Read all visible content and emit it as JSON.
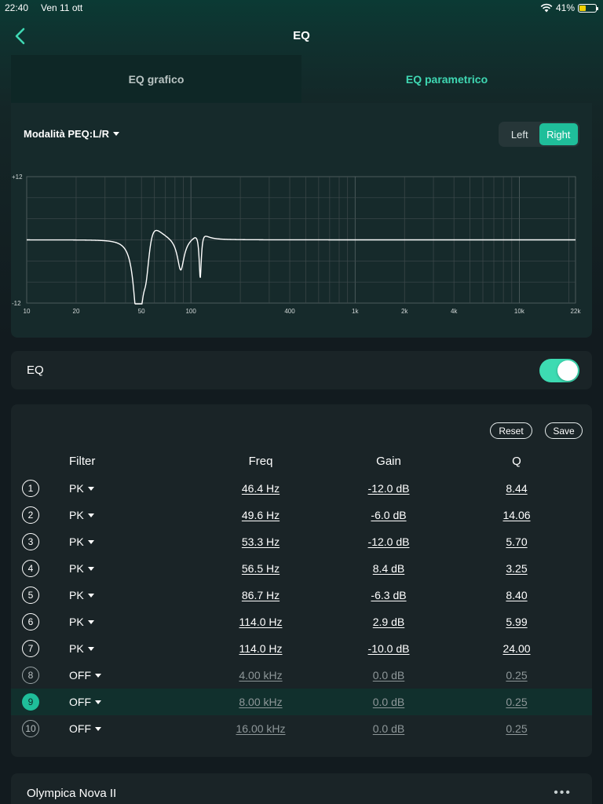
{
  "status_bar": {
    "time": "22:40",
    "date": "Ven 11 ott",
    "battery": "41%",
    "battery_level": 0.41
  },
  "nav": {
    "title": "EQ"
  },
  "tabs": [
    {
      "label": "EQ grafico",
      "active": false
    },
    {
      "label": "EQ parametrico",
      "active": true
    }
  ],
  "graph": {
    "mode_label": "Modalità PEQ:L/R",
    "channel_options": [
      "Left",
      "Right"
    ],
    "selected_channel": "Right",
    "y_max_label": "+12",
    "y_min_label": "-12",
    "x_ticks": [
      "10",
      "20",
      "50",
      "100",
      "400",
      "1k",
      "2k",
      "4k",
      "10k",
      "22k"
    ]
  },
  "eq_toggle": {
    "label": "EQ",
    "enabled": true
  },
  "table": {
    "reset_label": "Reset",
    "save_label": "Save",
    "headers": {
      "filter": "Filter",
      "freq": "Freq",
      "gain": "Gain",
      "q": "Q"
    },
    "rows": [
      {
        "num": "1",
        "filter": "PK",
        "freq": "46.4 Hz",
        "gain": "-12.0 dB",
        "q": "8.44",
        "off": false
      },
      {
        "num": "2",
        "filter": "PK",
        "freq": "49.6 Hz",
        "gain": "-6.0 dB",
        "q": "14.06",
        "off": false
      },
      {
        "num": "3",
        "filter": "PK",
        "freq": "53.3 Hz",
        "gain": "-12.0 dB",
        "q": "5.70",
        "off": false
      },
      {
        "num": "4",
        "filter": "PK",
        "freq": "56.5 Hz",
        "gain": "8.4 dB",
        "q": "3.25",
        "off": false
      },
      {
        "num": "5",
        "filter": "PK",
        "freq": "86.7 Hz",
        "gain": "-6.3 dB",
        "q": "8.40",
        "off": false
      },
      {
        "num": "6",
        "filter": "PK",
        "freq": "114.0 Hz",
        "gain": "2.9 dB",
        "q": "5.99",
        "off": false
      },
      {
        "num": "7",
        "filter": "PK",
        "freq": "114.0 Hz",
        "gain": "-10.0 dB",
        "q": "24.00",
        "off": false
      },
      {
        "num": "8",
        "filter": "OFF",
        "freq": "4.00 kHz",
        "gain": "0.0 dB",
        "q": "0.25",
        "off": true
      },
      {
        "num": "9",
        "filter": "OFF",
        "freq": "8.00 kHz",
        "gain": "0.0 dB",
        "q": "0.25",
        "off": true,
        "selected": true
      },
      {
        "num": "10",
        "filter": "OFF",
        "freq": "16.00 kHz",
        "gain": "0.0 dB",
        "q": "0.25",
        "off": true
      }
    ]
  },
  "device": {
    "name": "Olympica Nova II",
    "more_icon": "ellipsis-icon"
  }
}
